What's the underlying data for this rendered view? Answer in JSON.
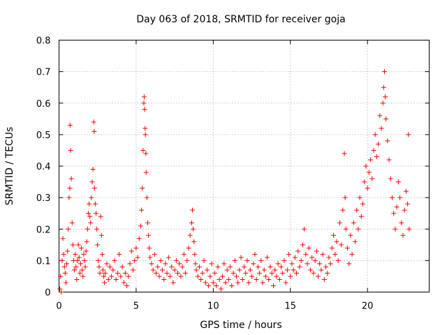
{
  "chart_data": {
    "type": "scatter",
    "title": "Day 063 of 2018, SRMTID for receiver goja",
    "xlabel": "GPS time / hours",
    "ylabel": "SRMTID / TECUs",
    "xlim": [
      0,
      24
    ],
    "ylim": [
      0,
      0.8
    ],
    "xticks": [
      0,
      5,
      10,
      15,
      20
    ],
    "xtick_labels": [
      "0",
      "5",
      "10",
      "15",
      "20"
    ],
    "yticks": [
      0,
      0.1,
      0.2,
      0.3,
      0.4,
      0.5,
      0.6,
      0.7,
      0.8
    ],
    "ytick_labels": [
      "0",
      "0.1",
      "0.2",
      "0.3",
      "0.4",
      "0.5",
      "0.6",
      "0.7",
      "0.8"
    ],
    "grid": true,
    "marker": "+",
    "color": "#ff0000",
    "series": [
      {
        "name": "SRMTID",
        "points": [
          [
            0.05,
            0.01
          ],
          [
            0.1,
            0.05
          ],
          [
            0.15,
            0.0
          ],
          [
            0.2,
            0.1
          ],
          [
            0.25,
            0.17
          ],
          [
            0.3,
            0.12
          ],
          [
            0.35,
            0.08
          ],
          [
            0.4,
            0.06
          ],
          [
            0.45,
            0.03
          ],
          [
            0.5,
            0.09
          ],
          [
            0.55,
            0.13
          ],
          [
            0.6,
            0.2
          ],
          [
            0.65,
            0.3
          ],
          [
            0.7,
            0.33
          ],
          [
            0.72,
            0.53
          ],
          [
            0.75,
            0.45
          ],
          [
            0.8,
            0.36
          ],
          [
            0.85,
            0.22
          ],
          [
            0.9,
            0.15
          ],
          [
            0.95,
            0.1
          ],
          [
            1.0,
            0.07
          ],
          [
            1.05,
            0.12
          ],
          [
            1.1,
            0.08
          ],
          [
            1.15,
            0.04
          ],
          [
            1.2,
            0.1
          ],
          [
            1.25,
            0.15
          ],
          [
            1.3,
            0.11
          ],
          [
            1.35,
            0.06
          ],
          [
            1.4,
            0.09
          ],
          [
            1.45,
            0.14
          ],
          [
            1.5,
            0.07
          ],
          [
            1.55,
            0.05
          ],
          [
            1.6,
            0.12
          ],
          [
            1.65,
            0.1
          ],
          [
            1.7,
            0.08
          ],
          [
            1.75,
            0.13
          ],
          [
            1.8,
            0.16
          ],
          [
            1.85,
            0.2
          ],
          [
            1.9,
            0.25
          ],
          [
            1.95,
            0.28
          ],
          [
            2.0,
            0.24
          ],
          [
            2.05,
            0.22
          ],
          [
            2.1,
            0.3
          ],
          [
            2.15,
            0.35
          ],
          [
            2.2,
            0.39
          ],
          [
            2.25,
            0.54
          ],
          [
            2.28,
            0.51
          ],
          [
            2.3,
            0.33
          ],
          [
            2.35,
            0.28
          ],
          [
            2.4,
            0.25
          ],
          [
            2.45,
            0.2
          ],
          [
            2.5,
            0.15
          ],
          [
            2.55,
            0.1
          ],
          [
            2.6,
            0.08
          ],
          [
            2.65,
            0.06
          ],
          [
            2.7,
            0.24
          ],
          [
            2.75,
            0.18
          ],
          [
            2.8,
            0.12
          ],
          [
            2.85,
            0.07
          ],
          [
            2.9,
            0.05
          ],
          [
            2.95,
            0.03
          ],
          [
            3.0,
            0.06
          ],
          [
            3.1,
            0.09
          ],
          [
            3.2,
            0.04
          ],
          [
            3.3,
            0.08
          ],
          [
            3.4,
            0.05
          ],
          [
            3.5,
            0.07
          ],
          [
            3.6,
            0.1
          ],
          [
            3.7,
            0.04
          ],
          [
            3.8,
            0.06
          ],
          [
            3.9,
            0.12
          ],
          [
            4.0,
            0.05
          ],
          [
            4.1,
            0.08
          ],
          [
            4.2,
            0.03
          ],
          [
            4.3,
            0.06
          ],
          [
            4.4,
            0.02
          ],
          [
            4.5,
            0.05
          ],
          [
            4.6,
            0.09
          ],
          [
            4.7,
            0.13
          ],
          [
            4.8,
            0.07
          ],
          [
            4.9,
            0.1
          ],
          [
            5.0,
            0.14
          ],
          [
            5.1,
            0.11
          ],
          [
            5.2,
            0.17
          ],
          [
            5.3,
            0.21
          ],
          [
            5.35,
            0.26
          ],
          [
            5.4,
            0.33
          ],
          [
            5.45,
            0.45
          ],
          [
            5.5,
            0.6
          ],
          [
            5.52,
            0.62
          ],
          [
            5.55,
            0.58
          ],
          [
            5.58,
            0.52
          ],
          [
            5.6,
            0.5
          ],
          [
            5.63,
            0.44
          ],
          [
            5.65,
            0.38
          ],
          [
            5.7,
            0.3
          ],
          [
            5.75,
            0.22
          ],
          [
            5.8,
            0.18
          ],
          [
            5.85,
            0.14
          ],
          [
            5.9,
            0.11
          ],
          [
            6.0,
            0.09
          ],
          [
            6.1,
            0.07
          ],
          [
            6.2,
            0.12
          ],
          [
            6.3,
            0.06
          ],
          [
            6.4,
            0.08
          ],
          [
            6.5,
            0.05
          ],
          [
            6.6,
            0.1
          ],
          [
            6.7,
            0.07
          ],
          [
            6.8,
            0.04
          ],
          [
            6.9,
            0.09
          ],
          [
            7.0,
            0.06
          ],
          [
            7.1,
            0.11
          ],
          [
            7.2,
            0.05
          ],
          [
            7.3,
            0.08
          ],
          [
            7.4,
            0.03
          ],
          [
            7.5,
            0.07
          ],
          [
            7.6,
            0.1
          ],
          [
            7.7,
            0.06
          ],
          [
            7.8,
            0.09
          ],
          [
            7.9,
            0.05
          ],
          [
            8.0,
            0.08
          ],
          [
            8.1,
            0.12
          ],
          [
            8.2,
            0.06
          ],
          [
            8.3,
            0.1
          ],
          [
            8.4,
            0.14
          ],
          [
            8.5,
            0.18
          ],
          [
            8.6,
            0.22
          ],
          [
            8.65,
            0.26
          ],
          [
            8.7,
            0.2
          ],
          [
            8.75,
            0.16
          ],
          [
            8.8,
            0.12
          ],
          [
            8.85,
            0.09
          ],
          [
            8.9,
            0.07
          ],
          [
            9.0,
            0.05
          ],
          [
            9.1,
            0.08
          ],
          [
            9.2,
            0.04
          ],
          [
            9.3,
            0.06
          ],
          [
            9.4,
            0.1
          ],
          [
            9.5,
            0.03
          ],
          [
            9.6,
            0.07
          ],
          [
            9.7,
            0.02
          ],
          [
            9.8,
            0.05
          ],
          [
            9.9,
            0.09
          ],
          [
            10.0,
            0.03
          ],
          [
            10.1,
            0.06
          ],
          [
            10.2,
            0.02
          ],
          [
            10.3,
            0.08
          ],
          [
            10.4,
            0.04
          ],
          [
            10.5,
            0.01
          ],
          [
            10.6,
            0.05
          ],
          [
            10.7,
            0.09
          ],
          [
            10.8,
            0.03
          ],
          [
            10.9,
            0.07
          ],
          [
            11.0,
            0.04
          ],
          [
            11.1,
            0.08
          ],
          [
            11.2,
            0.02
          ],
          [
            11.3,
            0.06
          ],
          [
            11.4,
            0.1
          ],
          [
            11.5,
            0.05
          ],
          [
            11.6,
            0.03
          ],
          [
            11.7,
            0.07
          ],
          [
            11.8,
            0.11
          ],
          [
            11.9,
            0.04
          ],
          [
            12.0,
            0.08
          ],
          [
            12.1,
            0.06
          ],
          [
            12.2,
            0.1
          ],
          [
            12.3,
            0.03
          ],
          [
            12.4,
            0.07
          ],
          [
            12.5,
            0.05
          ],
          [
            12.6,
            0.09
          ],
          [
            12.7,
            0.12
          ],
          [
            12.8,
            0.04
          ],
          [
            12.9,
            0.08
          ],
          [
            13.0,
            0.06
          ],
          [
            13.1,
            0.1
          ],
          [
            13.2,
            0.03
          ],
          [
            13.3,
            0.07
          ],
          [
            13.4,
            0.05
          ],
          [
            13.5,
            0.11
          ],
          [
            13.6,
            0.04
          ],
          [
            13.7,
            0.08
          ],
          [
            13.8,
            0.06
          ],
          [
            13.9,
            0.02
          ],
          [
            14.0,
            0.07
          ],
          [
            14.1,
            0.05
          ],
          [
            14.2,
            0.09
          ],
          [
            14.3,
            0.04
          ],
          [
            14.4,
            0.08
          ],
          [
            14.5,
            0.06
          ],
          [
            14.6,
            0.1
          ],
          [
            14.7,
            0.03
          ],
          [
            14.8,
            0.07
          ],
          [
            14.9,
            0.12
          ],
          [
            15.0,
            0.05
          ],
          [
            15.1,
            0.09
          ],
          [
            15.2,
            0.07
          ],
          [
            15.3,
            0.11
          ],
          [
            15.4,
            0.06
          ],
          [
            15.5,
            0.13
          ],
          [
            15.6,
            0.08
          ],
          [
            15.7,
            0.1
          ],
          [
            15.8,
            0.15
          ],
          [
            15.9,
            0.2
          ],
          [
            16.0,
            0.12
          ],
          [
            16.1,
            0.09
          ],
          [
            16.2,
            0.14
          ],
          [
            16.3,
            0.07
          ],
          [
            16.4,
            0.11
          ],
          [
            16.5,
            0.06
          ],
          [
            16.6,
            0.1
          ],
          [
            16.7,
            0.13
          ],
          [
            16.8,
            0.05
          ],
          [
            16.9,
            0.09
          ],
          [
            17.0,
            0.07
          ],
          [
            17.1,
            0.12
          ],
          [
            17.2,
            0.04
          ],
          [
            17.3,
            0.08
          ],
          [
            17.4,
            0.06
          ],
          [
            17.5,
            0.11
          ],
          [
            17.6,
            0.09
          ],
          [
            17.7,
            0.14
          ],
          [
            17.8,
            0.18
          ],
          [
            17.9,
            0.12
          ],
          [
            18.0,
            0.16
          ],
          [
            18.1,
            0.1
          ],
          [
            18.2,
            0.22
          ],
          [
            18.3,
            0.15
          ],
          [
            18.4,
            0.26
          ],
          [
            18.5,
            0.44
          ],
          [
            18.55,
            0.3
          ],
          [
            18.6,
            0.2
          ],
          [
            18.7,
            0.14
          ],
          [
            18.8,
            0.09
          ],
          [
            18.9,
            0.18
          ],
          [
            19.0,
            0.12
          ],
          [
            19.1,
            0.22
          ],
          [
            19.2,
            0.16
          ],
          [
            19.3,
            0.26
          ],
          [
            19.4,
            0.2
          ],
          [
            19.5,
            0.3
          ],
          [
            19.6,
            0.24
          ],
          [
            19.7,
            0.28
          ],
          [
            19.8,
            0.35
          ],
          [
            19.9,
            0.4
          ],
          [
            20.0,
            0.33
          ],
          [
            20.1,
            0.38
          ],
          [
            20.2,
            0.42
          ],
          [
            20.3,
            0.36
          ],
          [
            20.4,
            0.45
          ],
          [
            20.5,
            0.5
          ],
          [
            20.6,
            0.43
          ],
          [
            20.7,
            0.47
          ],
          [
            20.8,
            0.56
          ],
          [
            20.9,
            0.52
          ],
          [
            21.0,
            0.6
          ],
          [
            21.05,
            0.65
          ],
          [
            21.1,
            0.7
          ],
          [
            21.15,
            0.62
          ],
          [
            21.2,
            0.55
          ],
          [
            21.3,
            0.48
          ],
          [
            21.4,
            0.42
          ],
          [
            21.5,
            0.36
          ],
          [
            21.6,
            0.3
          ],
          [
            21.7,
            0.25
          ],
          [
            21.8,
            0.2
          ],
          [
            21.9,
            0.27
          ],
          [
            22.0,
            0.35
          ],
          [
            22.1,
            0.3
          ],
          [
            22.2,
            0.22
          ],
          [
            22.3,
            0.18
          ],
          [
            22.4,
            0.26
          ],
          [
            22.5,
            0.32
          ],
          [
            22.6,
            0.28
          ],
          [
            22.65,
            0.5
          ],
          [
            22.7,
            0.2
          ]
        ]
      }
    ]
  }
}
